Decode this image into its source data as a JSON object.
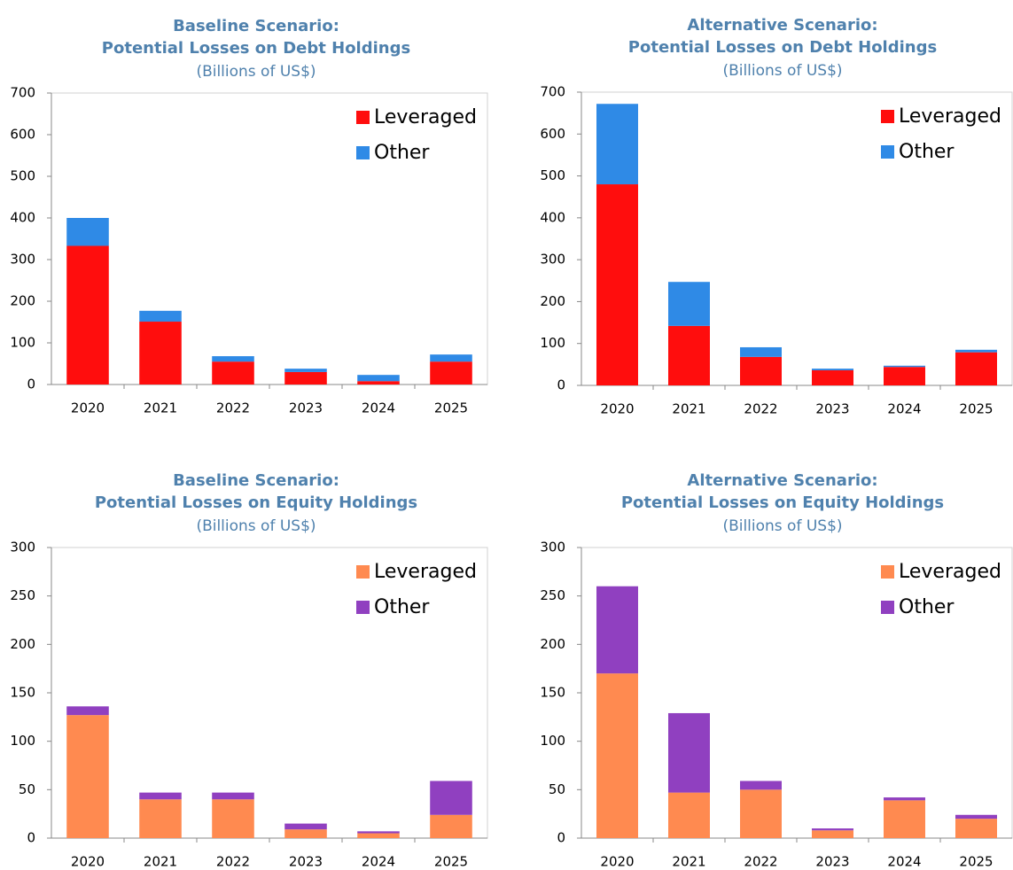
{
  "chart_data": [
    {
      "type": "stacked-bar",
      "title": [
        "Baseline Scenario:",
        "Potential Losses on Debt Holdings"
      ],
      "subtitle": "(Billions of US$)",
      "categories": [
        "2020",
        "2021",
        "2022",
        "2023",
        "2024",
        "2025"
      ],
      "series": [
        {
          "name": "Leveraged",
          "color": "#ff0d0d",
          "values": [
            333,
            151,
            55,
            30,
            8,
            55
          ]
        },
        {
          "name": "Other",
          "color": "#2f8ae6",
          "values": [
            67,
            26,
            13,
            8,
            15,
            17
          ]
        }
      ],
      "ylim": [
        0,
        700
      ],
      "yticks": [
        0,
        100,
        200,
        300,
        400,
        500,
        600,
        700
      ],
      "legend": "upper right"
    },
    {
      "type": "stacked-bar",
      "title": [
        "Alternative Scenario:",
        "Potential Losses on Debt Holdings"
      ],
      "subtitle": "(Billions of US$)",
      "categories": [
        "2020",
        "2021",
        "2022",
        "2023",
        "2024",
        "2025"
      ],
      "series": [
        {
          "name": "Leveraged",
          "color": "#ff0d0d",
          "values": [
            480,
            142,
            68,
            36,
            44,
            79
          ]
        },
        {
          "name": "Other",
          "color": "#2f8ae6",
          "values": [
            192,
            105,
            23,
            4,
            3,
            6
          ]
        }
      ],
      "ylim": [
        0,
        700
      ],
      "yticks": [
        0,
        100,
        200,
        300,
        400,
        500,
        600,
        700
      ],
      "legend": "upper right"
    },
    {
      "type": "stacked-bar",
      "title": [
        "Baseline Scenario:",
        "Potential Losses on Equity Holdings"
      ],
      "subtitle": "(Billions of US$)",
      "categories": [
        "2020",
        "2021",
        "2022",
        "2023",
        "2024",
        "2025"
      ],
      "series": [
        {
          "name": "Leveraged",
          "color": "#ff8a50",
          "values": [
            127,
            40,
            40,
            9,
            5,
            24
          ]
        },
        {
          "name": "Other",
          "color": "#9040c0",
          "values": [
            9,
            7,
            7,
            6,
            2,
            35
          ]
        }
      ],
      "ylim": [
        0,
        300
      ],
      "yticks": [
        0,
        50,
        100,
        150,
        200,
        250,
        300
      ],
      "legend": "upper right"
    },
    {
      "type": "stacked-bar",
      "title": [
        "Alternative Scenario:",
        "Potential Losses on Equity Holdings"
      ],
      "subtitle": "(Billions of US$)",
      "categories": [
        "2020",
        "2021",
        "2022",
        "2023",
        "2024",
        "2025"
      ],
      "series": [
        {
          "name": "Leveraged",
          "color": "#ff8a50",
          "values": [
            170,
            47,
            50,
            8,
            39,
            20
          ]
        },
        {
          "name": "Other",
          "color": "#9040c0",
          "values": [
            90,
            82,
            9,
            2,
            3,
            4
          ]
        }
      ],
      "ylim": [
        0,
        300
      ],
      "yticks": [
        0,
        50,
        100,
        150,
        200,
        250,
        300
      ],
      "legend": "upper right"
    }
  ]
}
